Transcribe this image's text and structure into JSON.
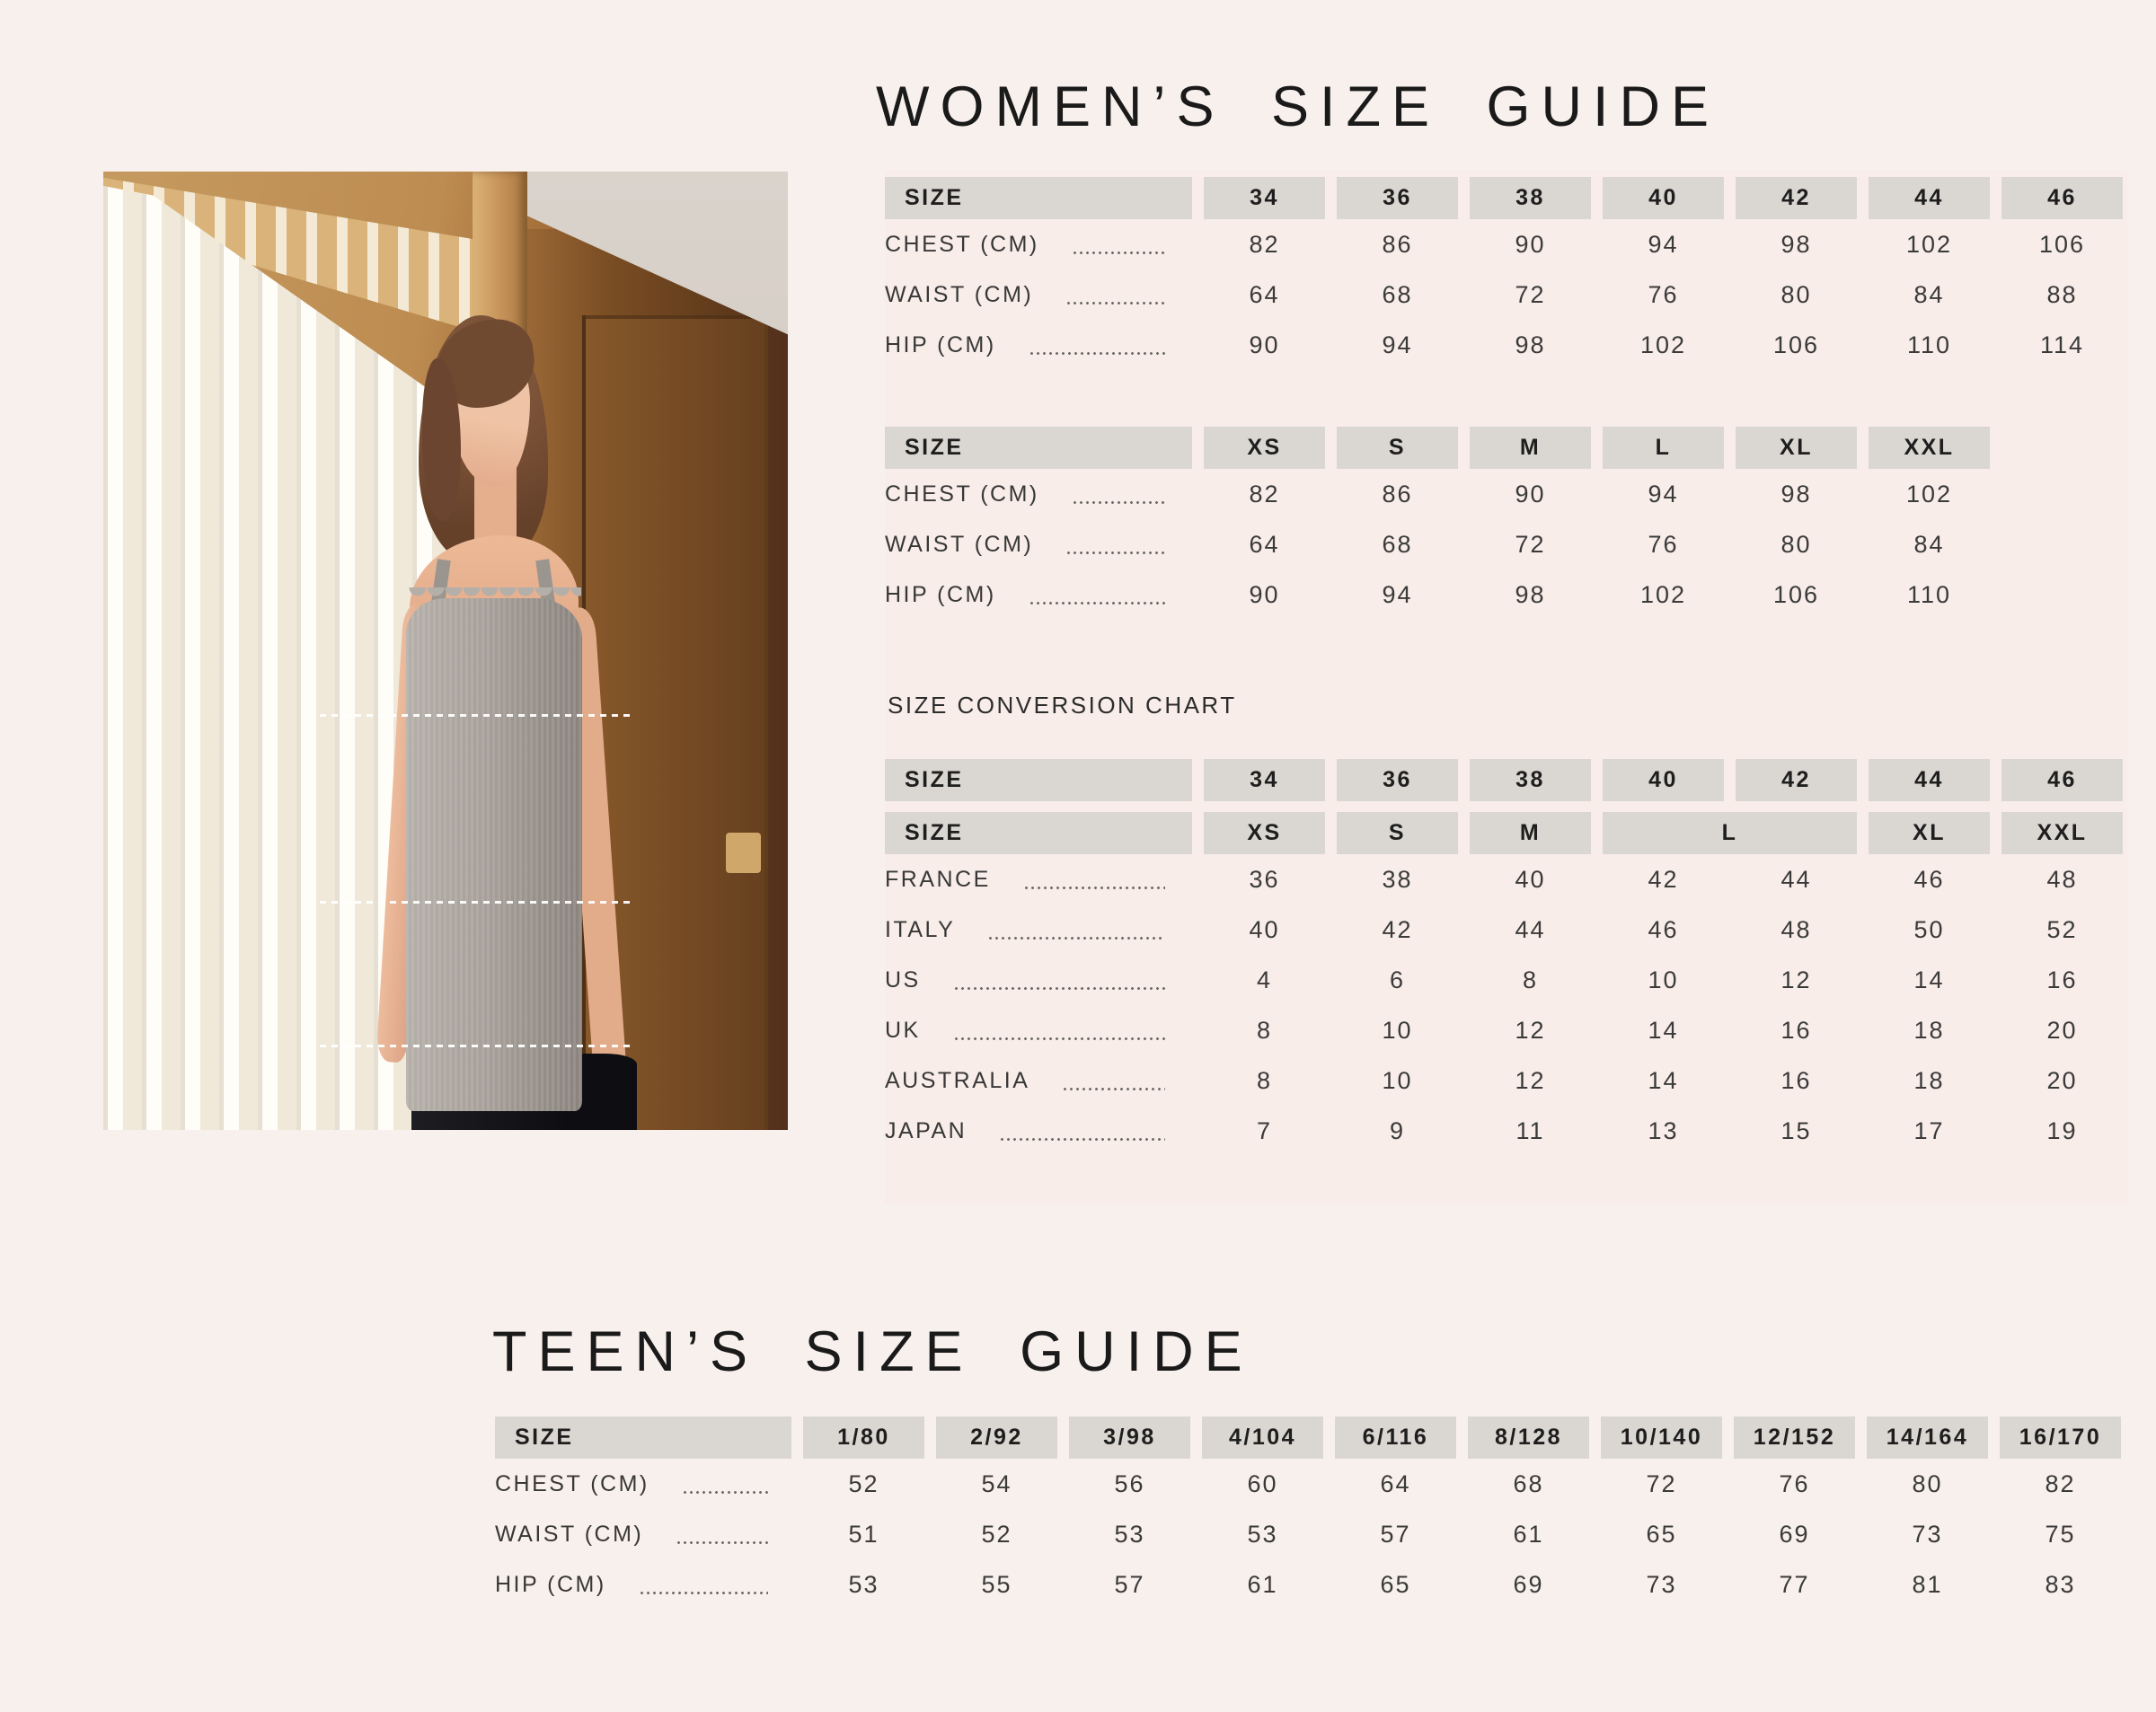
{
  "page": {
    "background": "#f8f0ec",
    "tables_panel": "#f8ebe6",
    "header_cell_color": "#dad7d2",
    "measure_line_color": "#ffffff"
  },
  "womens": {
    "title": "WOMEN’S SIZE GUIDE",
    "table_cm": {
      "headers": [
        [
          "SIZE",
          "34",
          "36",
          "38",
          "40",
          "42",
          "44",
          "46"
        ]
      ],
      "rows": [
        {
          "label": "CHEST (CM)",
          "values": [
            "82",
            "86",
            "90",
            "94",
            "98",
            "102",
            "106"
          ]
        },
        {
          "label": "WAIST (CM)",
          "values": [
            "64",
            "68",
            "72",
            "76",
            "80",
            "84",
            "88"
          ]
        },
        {
          "label": "HIP (CM)",
          "values": [
            "90",
            "94",
            "98",
            "102",
            "106",
            "110",
            "114"
          ]
        }
      ]
    },
    "table_letter": {
      "headers": [
        [
          "SIZE",
          "XS",
          "S",
          "M",
          "L",
          "XL",
          "XXL"
        ]
      ],
      "rows": [
        {
          "label": "CHEST (CM)",
          "values": [
            "82",
            "86",
            "90",
            "94",
            "98",
            "102"
          ]
        },
        {
          "label": "WAIST (CM)",
          "values": [
            "64",
            "68",
            "72",
            "76",
            "80",
            "84"
          ]
        },
        {
          "label": "HIP (CM)",
          "values": [
            "90",
            "94",
            "98",
            "102",
            "106",
            "110"
          ]
        }
      ]
    },
    "conversion": {
      "caption": "SIZE CONVERSION CHART",
      "table": {
        "headers": [
          [
            "SIZE",
            "34",
            "36",
            "38",
            "40",
            "42",
            "44",
            "46"
          ],
          [
            "SIZE",
            "XS",
            "S",
            "M",
            {
              "label": "L",
              "span": 2
            },
            "XL",
            "XXL"
          ]
        ],
        "rows": [
          {
            "label": "FRANCE",
            "values": [
              "36",
              "38",
              "40",
              "42",
              "44",
              "46",
              "48"
            ]
          },
          {
            "label": "ITALY",
            "values": [
              "40",
              "42",
              "44",
              "46",
              "48",
              "50",
              "52"
            ]
          },
          {
            "label": "US",
            "values": [
              "4",
              "6",
              "8",
              "10",
              "12",
              "14",
              "16"
            ]
          },
          {
            "label": "UK",
            "values": [
              "8",
              "10",
              "12",
              "14",
              "16",
              "18",
              "20"
            ]
          },
          {
            "label": "AUSTRALIA",
            "values": [
              "8",
              "10",
              "12",
              "14",
              "16",
              "18",
              "20"
            ]
          },
          {
            "label": "JAPAN",
            "values": [
              "7",
              "9",
              "11",
              "13",
              "15",
              "17",
              "19"
            ]
          }
        ]
      }
    }
  },
  "teens": {
    "title": "TEEN’S SIZE GUIDE",
    "table": {
      "headers": [
        [
          "SIZE",
          "1/80",
          "2/92",
          "3/98",
          "4/104",
          "6/116",
          "8/128",
          "10/140",
          "12/152",
          "14/164",
          "16/170"
        ]
      ],
      "rows": [
        {
          "label": "CHEST (CM)",
          "values": [
            "52",
            "54",
            "56",
            "60",
            "64",
            "68",
            "72",
            "76",
            "80",
            "82"
          ]
        },
        {
          "label": "WAIST (CM)",
          "values": [
            "51",
            "52",
            "53",
            "53",
            "57",
            "61",
            "65",
            "69",
            "73",
            "75"
          ]
        },
        {
          "label": "HIP (CM)",
          "values": [
            "53",
            "55",
            "57",
            "61",
            "65",
            "69",
            "73",
            "77",
            "81",
            "83"
          ]
        }
      ]
    }
  },
  "photo": {
    "measurement_lines": [
      "chest",
      "waist",
      "hip"
    ]
  }
}
